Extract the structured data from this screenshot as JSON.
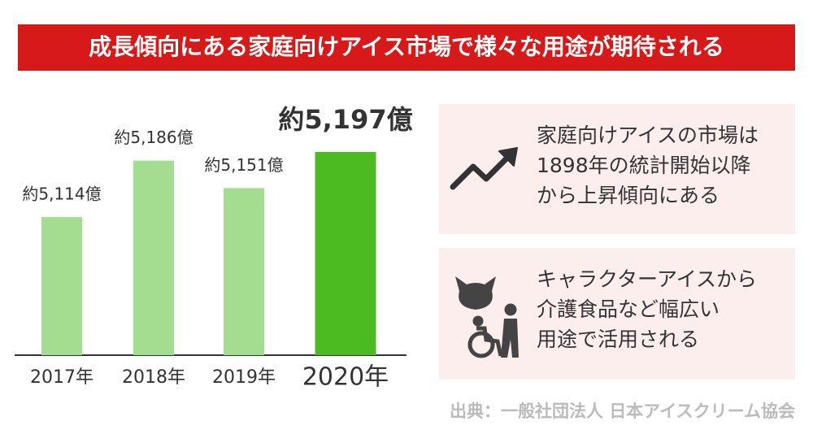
{
  "header": {
    "title": "成長傾向にある家庭向けアイス市場で様々な用途が期待される"
  },
  "chart_data": {
    "type": "bar",
    "categories": [
      "2017年",
      "2018年",
      "2019年",
      "2020年"
    ],
    "values": [
      5114,
      5186,
      5151,
      5197
    ],
    "value_labels": [
      "約5,114億",
      "約5,186億",
      "約5,151億",
      "約5,197億"
    ],
    "colors": [
      "#a3dd8f",
      "#a3dd8f",
      "#a3dd8f",
      "#4cbb21"
    ]
  },
  "panels": [
    {
      "lines": [
        "家庭向けアイスの市場は",
        "1898年の統計開始以降",
        "から上昇傾向にある"
      ]
    },
    {
      "lines": [
        "キャラクターアイスから",
        "介護食品など幅広い",
        "用途で活用される"
      ]
    }
  ],
  "source": "出典：一般社団法人 日本アイスクリーム協会"
}
